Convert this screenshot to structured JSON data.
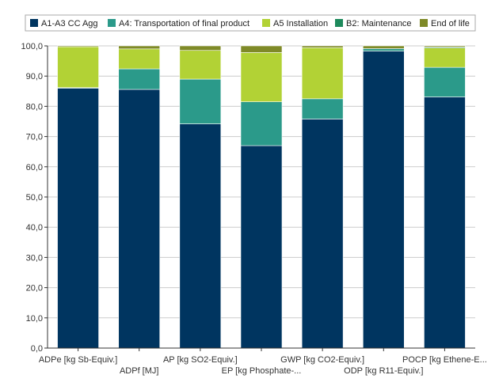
{
  "chart_data": {
    "type": "bar",
    "stacked": true,
    "categories": [
      "ADPe [kg Sb-Equiv.]",
      "ADPf [MJ]",
      "AP [kg SO2-Equiv.]",
      "EP [kg Phosphate-...",
      "GWP [kg CO2-Equiv.]",
      "ODP [kg R11-Equiv.]",
      "POCP [kg Ethene-E..."
    ],
    "series": [
      {
        "name": "A1-A3 CC Agg",
        "color": "#003560",
        "values": [
          86.0,
          85.6,
          74.2,
          67.0,
          75.8,
          98.3,
          83.1
        ]
      },
      {
        "name": "A4: Transportation of final product",
        "color": "#2b9a8a",
        "values": [
          0.2,
          6.8,
          14.8,
          14.5,
          6.7,
          0.8,
          9.8
        ]
      },
      {
        "name": "A5 Installation",
        "color": "#b2d235",
        "values": [
          13.5,
          6.6,
          9.5,
          16.3,
          16.9,
          0.0,
          6.4
        ]
      },
      {
        "name": "B2: Maintenance",
        "color": "#1d8a5c",
        "values": [
          0.0,
          0.0,
          0.0,
          0.0,
          0.0,
          0.0,
          0.3
        ]
      },
      {
        "name": "End of life",
        "color": "#7f8a28",
        "values": [
          0.3,
          1.0,
          1.5,
          2.2,
          0.6,
          0.9,
          0.4
        ]
      }
    ],
    "yticks": [
      "0,0",
      "10,0",
      "20,0",
      "30,0",
      "40,0",
      "50,0",
      "60,0",
      "70,0",
      "80,0",
      "90,0",
      "100,0"
    ],
    "ylim": [
      0,
      100
    ],
    "grid": true,
    "legend_position": "top",
    "colors": {
      "grid": "#cccccc",
      "axis": "#333333",
      "bar_outline": "#ffffff"
    }
  }
}
